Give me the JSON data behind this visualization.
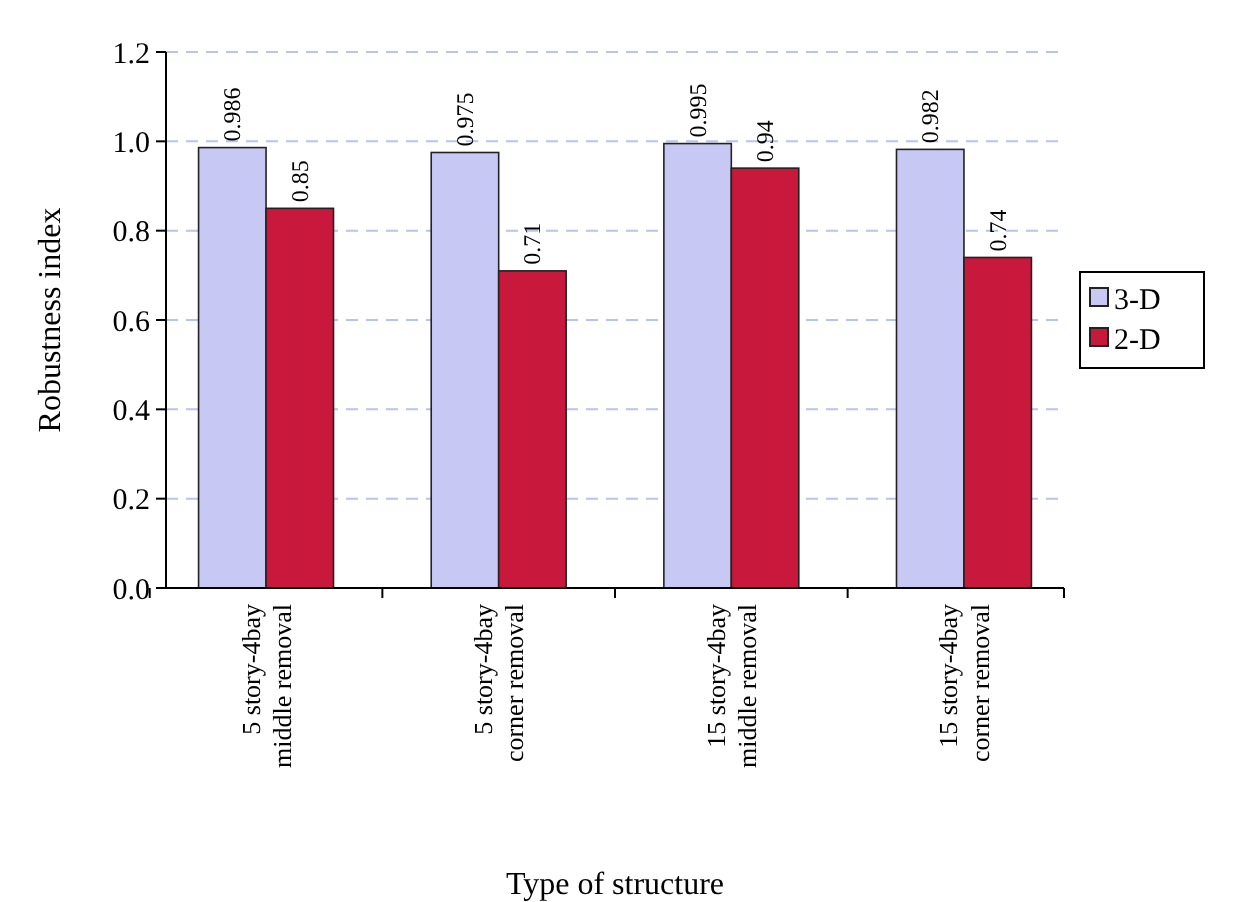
{
  "chart_data": {
    "type": "bar",
    "xlabel": "Type of structure",
    "ylabel": "Robustness index",
    "categories": [
      "5 story-4bay\nmiddle removal",
      "5 story-4bay\ncorner removal",
      "15 story-4bay\nmiddle removal",
      "15 story-4bay\ncorner removal"
    ],
    "series": [
      {
        "name": "3-D",
        "color": "#c8c8f4",
        "values": [
          0.986,
          0.975,
          0.995,
          0.982
        ]
      },
      {
        "name": "2-D",
        "color": "#c8183c",
        "values": [
          0.85,
          0.71,
          0.94,
          0.74
        ]
      }
    ],
    "ylim": [
      0,
      1.2
    ],
    "yticks": [
      {
        "value": 0,
        "label": "0.0"
      },
      {
        "value": 0.2,
        "label": "0.2"
      },
      {
        "value": 0.4,
        "label": "0.4"
      },
      {
        "value": 0.6,
        "label": "0.6"
      },
      {
        "value": 0.8,
        "label": "0.8"
      },
      {
        "value": 1,
        "label": "1.0"
      },
      {
        "value": 1.2,
        "label": "1.2"
      }
    ],
    "grid": "y",
    "legend": "right",
    "data_labels": true
  }
}
